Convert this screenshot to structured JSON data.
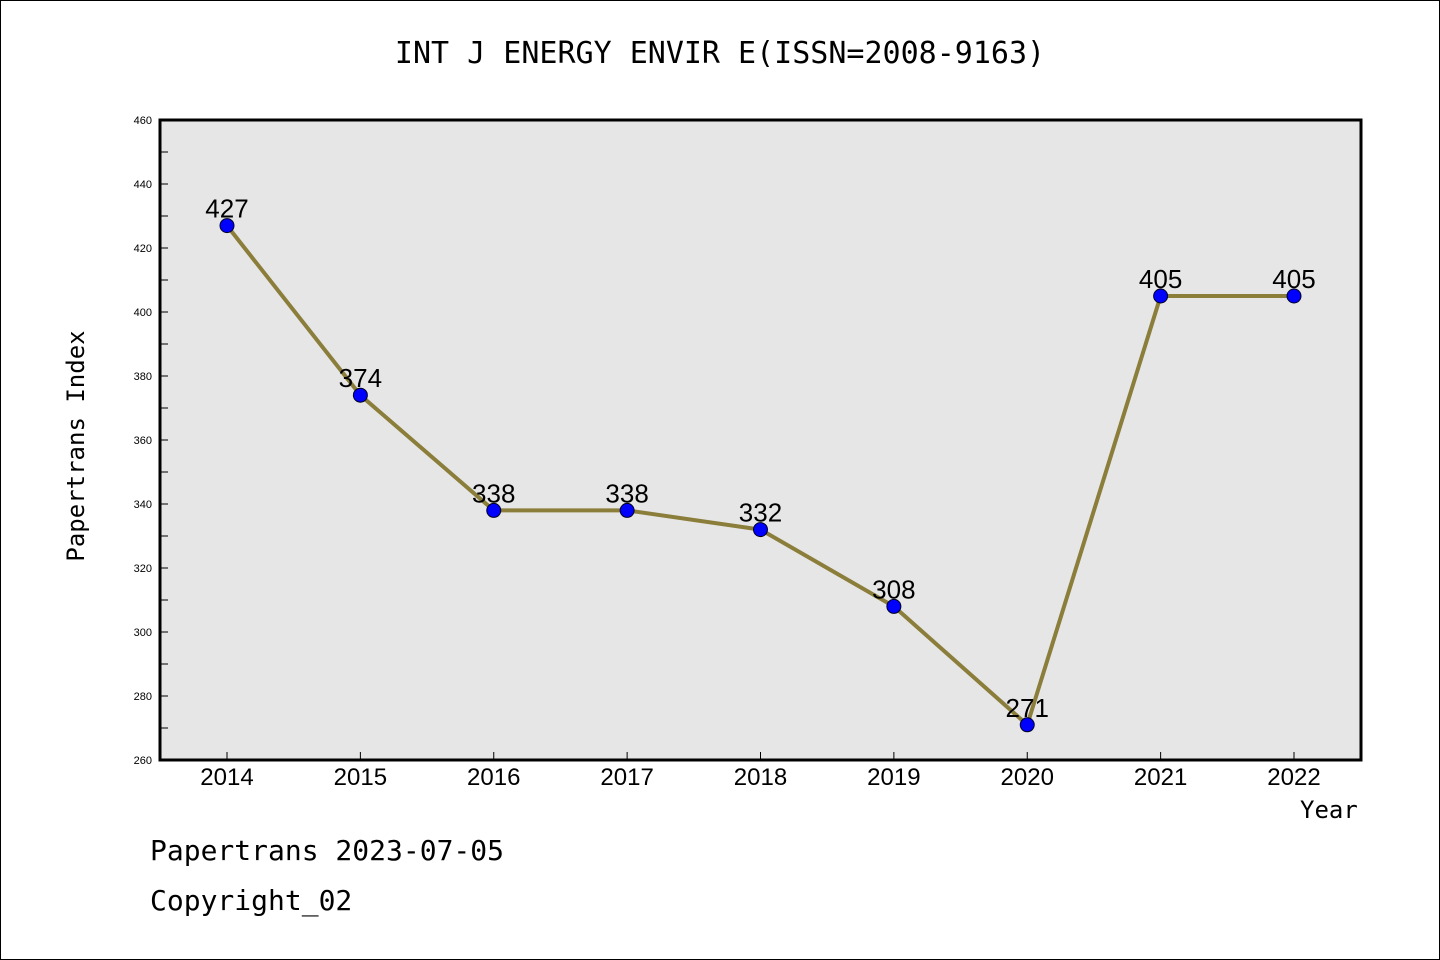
{
  "chart_data": {
    "type": "line",
    "title": "INT J ENERGY ENVIR E(ISSN=2008-9163)",
    "xlabel": "Year",
    "ylabel": "Papertrans Index",
    "categories": [
      "2014",
      "2015",
      "2016",
      "2017",
      "2018",
      "2019",
      "2020",
      "2021",
      "2022"
    ],
    "values": [
      427,
      374,
      338,
      338,
      332,
      308,
      271,
      405,
      405
    ],
    "data_labels": [
      "427",
      "374",
      "338",
      "338",
      "332",
      "308",
      "271",
      "405",
      "405"
    ],
    "ylim": [
      260,
      460
    ],
    "yticks": [
      260,
      280,
      300,
      320,
      340,
      360,
      380,
      400,
      420,
      440,
      460
    ],
    "ytick_labels": [
      "260",
      "280",
      "300",
      "320",
      "340",
      "360",
      "380",
      "400",
      "420",
      "440",
      "460"
    ],
    "grid": false,
    "colors": {
      "line": "#8B7D3A",
      "marker": "#0000FF",
      "plot_background": "#E6E6E6"
    }
  },
  "footer": {
    "line1": "Papertrans 2023-07-05",
    "line2": "Copyright_02"
  }
}
